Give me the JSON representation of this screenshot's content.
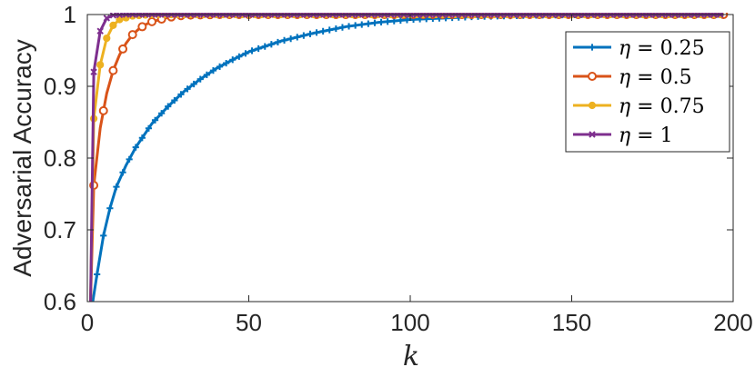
{
  "chart_data": {
    "type": "line",
    "xlabel": "k",
    "ylabel": "Adversarial Accuracy",
    "xlim": [
      0,
      200
    ],
    "ylim": [
      0.6,
      1.0
    ],
    "xticks": [
      0,
      50,
      100,
      150,
      200
    ],
    "yticks": [
      0.6,
      0.7,
      0.8,
      0.9,
      1.0
    ],
    "ytick_labels": [
      "0.6",
      "0.7",
      "0.8",
      "0.9",
      "1"
    ],
    "grid": false,
    "legend_position": "top-right",
    "series": [
      {
        "name": "η = 0.25",
        "eta_symbol": "η",
        "eta_value": "0.25",
        "color": "#0072BD",
        "marker": "plus",
        "x_step": 2,
        "x_start": 1,
        "x_end": 197,
        "points": [
          [
            1,
            0.58
          ],
          [
            3,
            0.638
          ],
          [
            5,
            0.692
          ],
          [
            7,
            0.73
          ],
          [
            9,
            0.76
          ],
          [
            12,
            0.79
          ],
          [
            15,
            0.815
          ],
          [
            20,
            0.848
          ],
          [
            25,
            0.872
          ],
          [
            30,
            0.893
          ],
          [
            35,
            0.91
          ],
          [
            40,
            0.925
          ],
          [
            45,
            0.937
          ],
          [
            50,
            0.948
          ],
          [
            60,
            0.963
          ],
          [
            70,
            0.974
          ],
          [
            80,
            0.983
          ],
          [
            90,
            0.989
          ],
          [
            100,
            0.993
          ],
          [
            120,
            0.997
          ],
          [
            140,
            0.999
          ],
          [
            160,
            1.0
          ],
          [
            197,
            1.0
          ]
        ]
      },
      {
        "name": "η = 0.5",
        "eta_symbol": "η",
        "eta_value": "0.5",
        "color": "#D95319",
        "marker": "circle",
        "x_step": 3,
        "x_start": 2,
        "x_end": 197,
        "points": [
          [
            1,
            0.6
          ],
          [
            2,
            0.762
          ],
          [
            4,
            0.842
          ],
          [
            6,
            0.89
          ],
          [
            8,
            0.922
          ],
          [
            10,
            0.944
          ],
          [
            12,
            0.96
          ],
          [
            14,
            0.972
          ],
          [
            16,
            0.98
          ],
          [
            18,
            0.986
          ],
          [
            20,
            0.99
          ],
          [
            25,
            0.996
          ],
          [
            30,
            0.999
          ],
          [
            40,
            1.0
          ],
          [
            197,
            1.0
          ]
        ]
      },
      {
        "name": "η = 0.75",
        "eta_symbol": "η",
        "eta_value": "0.75",
        "color": "#EDB120",
        "marker": "dot",
        "x_step": 2,
        "x_start": 2,
        "x_end": 197,
        "points": [
          [
            1,
            0.6
          ],
          [
            2,
            0.855
          ],
          [
            4,
            0.93
          ],
          [
            6,
            0.967
          ],
          [
            8,
            0.985
          ],
          [
            10,
            0.993
          ],
          [
            14,
            0.998
          ],
          [
            20,
            1.0
          ],
          [
            197,
            1.0
          ]
        ]
      },
      {
        "name": "η = 1",
        "eta_symbol": "η",
        "eta_value": "1",
        "color": "#7E2F8E",
        "marker": "x",
        "x_step": 2,
        "x_start": 2,
        "x_end": 197,
        "points": [
          [
            1,
            0.6
          ],
          [
            2,
            0.92
          ],
          [
            4,
            0.977
          ],
          [
            6,
            0.995
          ],
          [
            8,
            0.999
          ],
          [
            12,
            1.0
          ],
          [
            197,
            1.0
          ]
        ]
      }
    ]
  }
}
